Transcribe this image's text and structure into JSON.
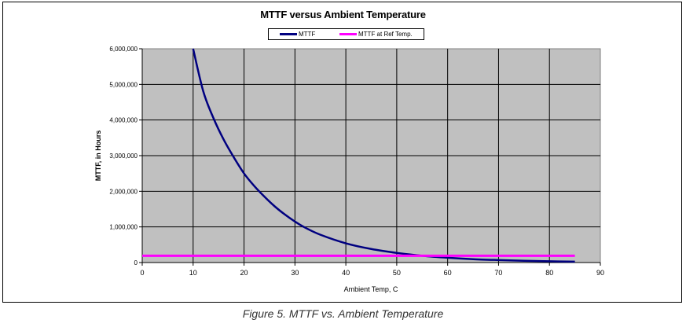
{
  "caption": "Figure 5. MTTF vs. Ambient Temperature",
  "chart_data": {
    "type": "line",
    "title": "MTTF versus Ambient Temperature",
    "xlabel": "Ambient Temp, C",
    "ylabel": "MTTF, in Hours",
    "xlim": [
      0,
      90
    ],
    "ylim": [
      0,
      6000000
    ],
    "xticks": [
      0,
      10,
      20,
      30,
      40,
      50,
      60,
      70,
      80,
      90
    ],
    "yticks": [
      0,
      1000000,
      2000000,
      3000000,
      4000000,
      5000000,
      6000000
    ],
    "xtick_labels": [
      "0",
      "10",
      "20",
      "30",
      "40",
      "50",
      "60",
      "70",
      "80",
      "90"
    ],
    "ytick_labels": [
      "0",
      "1,000,000",
      "2,000,000",
      "3,000,000",
      "4,000,000",
      "5,000,000",
      "6,000,000"
    ],
    "grid": true,
    "legend_position": "top-center",
    "plot_background": "#c0c0c0",
    "series": [
      {
        "name": "MTTF",
        "color": "#000080",
        "x": [
          10,
          12,
          14,
          16,
          18,
          20,
          22,
          24,
          26,
          28,
          30,
          32,
          35,
          40,
          45,
          50,
          55,
          60,
          65,
          70,
          75,
          80,
          85
        ],
        "y": [
          6000000,
          4800000,
          4050000,
          3450000,
          2950000,
          2500000,
          2150000,
          1850000,
          1580000,
          1350000,
          1150000,
          980000,
          780000,
          540000,
          380000,
          270000,
          190000,
          135000,
          95000,
          70000,
          50000,
          35000,
          25000
        ]
      },
      {
        "name": "MTTF at Ref Temp.",
        "color": "#ff00ff",
        "x": [
          0,
          85
        ],
        "y": [
          190000,
          190000
        ]
      }
    ]
  }
}
